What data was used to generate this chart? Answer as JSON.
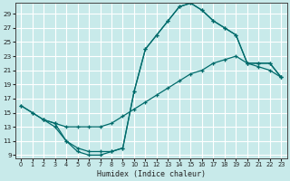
{
  "xlabel": "Humidex (Indice chaleur)",
  "bg_color": "#c8eaea",
  "grid_color": "#ffffff",
  "line_color": "#006b6b",
  "xlim": [
    -0.5,
    23.5
  ],
  "ylim": [
    8.5,
    30.5
  ],
  "xticks": [
    0,
    1,
    2,
    3,
    4,
    5,
    6,
    7,
    8,
    9,
    10,
    11,
    12,
    13,
    14,
    15,
    16,
    17,
    18,
    19,
    20,
    21,
    22,
    23
  ],
  "yticks": [
    9,
    11,
    13,
    15,
    17,
    19,
    21,
    23,
    25,
    27,
    29
  ],
  "curve_top_x": [
    0,
    1,
    2,
    3,
    4,
    5,
    6,
    7,
    8,
    9,
    10,
    11,
    12,
    13,
    14,
    15,
    16,
    17,
    18,
    19,
    20,
    21,
    22,
    23
  ],
  "curve_top_y": [
    16,
    15,
    14,
    13,
    11,
    10,
    9.5,
    9.5,
    9.5,
    10,
    18,
    24,
    26,
    28,
    30,
    30.5,
    29.5,
    28,
    27,
    26,
    22,
    22,
    22,
    20
  ],
  "curve_mid_x": [
    0,
    1,
    2,
    3,
    4,
    5,
    6,
    7,
    8,
    9,
    10,
    11,
    12,
    13,
    14,
    15,
    16,
    17,
    18,
    19,
    20,
    21,
    22,
    23
  ],
  "curve_mid_y": [
    16,
    15,
    14,
    13.5,
    13,
    13,
    13,
    13,
    13.5,
    14.5,
    15.5,
    16.5,
    17.5,
    18.5,
    19.5,
    20.5,
    21,
    22,
    22.5,
    23,
    22,
    21.5,
    21,
    20
  ],
  "curve_low_x": [
    2,
    3,
    4,
    5,
    6,
    7,
    8,
    9,
    10,
    11,
    12,
    13,
    14,
    15,
    16,
    17,
    18,
    19,
    20,
    21,
    22,
    23
  ],
  "curve_low_y": [
    14,
    13.5,
    11,
    9.5,
    9,
    9,
    9.5,
    10,
    18,
    24,
    26,
    28,
    30,
    30.5,
    29.5,
    28,
    27,
    26,
    22,
    22,
    22,
    20
  ]
}
